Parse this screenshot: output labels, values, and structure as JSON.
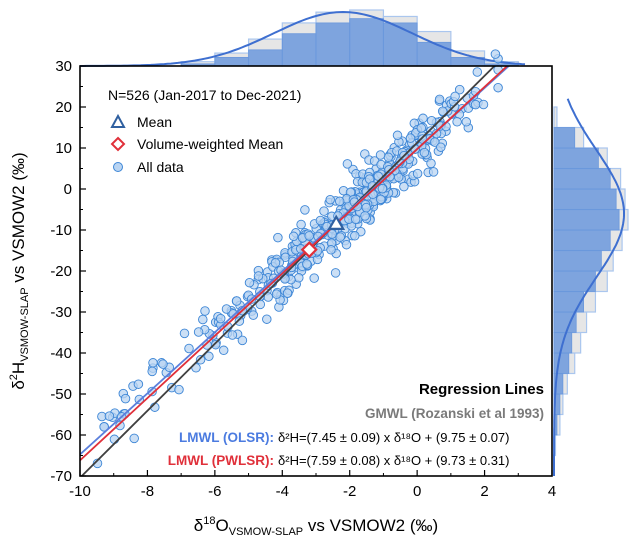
{
  "chart_data": {
    "type": "scatter",
    "xlabel": "δ18O VSMOW-SLAP vs VSMOW2 (‰)",
    "xlabel_parts": {
      "delta": "δ",
      "sup": "18",
      "main": "O",
      "sub": "VSMOW-SLAP",
      "tail": " vs VSMOW2 (‰)"
    },
    "ylabel": "δ2H VSMOW-SLAP vs VSMOW2 (‰)",
    "ylabel_parts": {
      "delta": "δ",
      "sup": "2",
      "main": "H",
      "sub": "VSMOW-SLAP",
      "tail": " vs VSMOW2 (‰)"
    },
    "xlim": [
      -10,
      4
    ],
    "ylim": [
      -70,
      30
    ],
    "x_ticks": [
      -10,
      -8,
      -6,
      -4,
      -2,
      0,
      2,
      4
    ],
    "x_tick_labels": [
      "-10",
      "-8",
      "-6",
      "-4",
      "-2",
      "0",
      "2",
      "4"
    ],
    "y_ticks": [
      -70,
      -60,
      -50,
      -40,
      -30,
      -20,
      -10,
      0,
      10,
      20,
      30
    ],
    "y_tick_labels": [
      "-70",
      "-60",
      "-50",
      "-40",
      "-30",
      "-20",
      "-10",
      "0",
      "10",
      "20",
      "30"
    ],
    "legend": {
      "header": "N=526 (Jan-2017 to Dec-2021)",
      "mean_label": "Mean",
      "vw_mean_label": "Volume-weighted Mean",
      "all_label": "All data",
      "placement": "top-left"
    },
    "mean": {
      "x": -2.4,
      "y": -8.5
    },
    "vw_mean": {
      "x": -3.2,
      "y": -14.8
    },
    "regression": {
      "title": "Regression Lines",
      "gmwl_label": "GMWL (Rozanski et al 1993)",
      "olsr_label": "LMWL (OLSR):",
      "olsr_eq": "δ²H=(7.45 ± 0.09) x δ¹⁸O + (9.75 ± 0.07)",
      "pwlsr_label": "LMWL (PWLSR):",
      "pwlsr_eq": "δ²H=(7.59 ± 0.08) x δ¹⁸O + (9.73 ± 0.31)"
    },
    "lines": [
      {
        "name": "GMWL",
        "slope": 8.17,
        "intercept": 11.27,
        "color": "#404040"
      },
      {
        "name": "LMWL (OLSR)",
        "slope": 7.45,
        "intercept": 9.75,
        "color": "#5b7fdc"
      },
      {
        "name": "LMWL (PWLSR)",
        "slope": 7.59,
        "intercept": 9.73,
        "color": "#e0303a"
      }
    ],
    "top_hist": {
      "bin_edges": [
        -10,
        -9,
        -8,
        -7,
        -6,
        -5,
        -4,
        -3,
        -2,
        -1,
        0,
        1,
        2,
        3
      ],
      "dark": [
        0,
        0,
        0,
        2,
        8,
        15,
        30,
        40,
        44,
        40,
        22,
        8,
        2
      ],
      "light": [
        0,
        0,
        0,
        4,
        12,
        25,
        40,
        50,
        52,
        46,
        32,
        14,
        4
      ]
    },
    "right_hist": {
      "bin_edges": [
        -70,
        -65,
        -60,
        -55,
        -50,
        -45,
        -40,
        -35,
        -30,
        -25,
        -20,
        -15,
        -10,
        -5,
        0,
        5,
        10,
        15,
        20
      ],
      "dark": [
        0,
        0,
        2,
        4,
        6,
        10,
        12,
        15,
        20,
        28,
        32,
        38,
        44,
        42,
        38,
        30,
        14,
        0
      ],
      "light": [
        0,
        1,
        4,
        6,
        9,
        14,
        18,
        22,
        28,
        36,
        40,
        46,
        50,
        48,
        45,
        36,
        20,
        2
      ]
    },
    "colors": {
      "marker": "#3d86d6",
      "marker_fill": "#b9d4f2",
      "hist_dark": "#6b98dc",
      "hist_light": "#aac6ee",
      "density": "#3e6fd0",
      "mean": "#3060a0",
      "vw_mean": "#e0303a"
    }
  }
}
